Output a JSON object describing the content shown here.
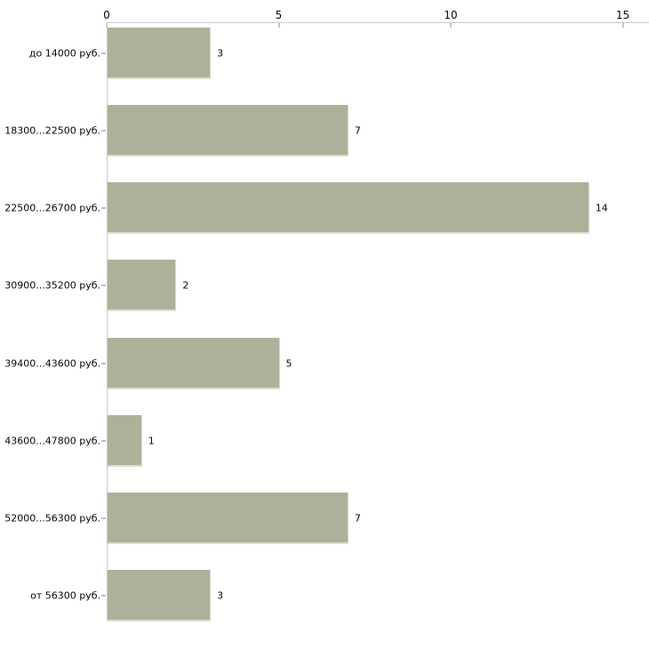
{
  "chart_data": {
    "type": "bar",
    "orientation": "horizontal",
    "title": "",
    "categories": [
      "до 14000 руб.",
      "18300...22500 руб.",
      "22500...26700 руб.",
      "30900...35200 руб.",
      "39400...43600 руб.",
      "43600...47800 руб.",
      "52000...56300 руб.",
      "от 56300 руб."
    ],
    "values": [
      3,
      7,
      14,
      2,
      5,
      1,
      7,
      3
    ],
    "value_labels": [
      "3",
      "7",
      "14",
      "2",
      "5",
      "1",
      "7",
      "3"
    ],
    "x_axis": {
      "position": "top",
      "min": 0,
      "max": 15,
      "ticks": [
        0,
        5,
        10,
        15
      ],
      "tick_labels": [
        "0",
        "5",
        "10",
        "15"
      ]
    },
    "grid": false,
    "legend": false,
    "colors": {
      "bar_fill": "#acb29a",
      "bar_edge": "#d9dccf",
      "axis_line": "#c8c8c8",
      "x_tick_mark": "#c5caaf",
      "category_tick_mark": "#bcc1a8",
      "text": "#000000",
      "background": "#ffffff"
    }
  }
}
